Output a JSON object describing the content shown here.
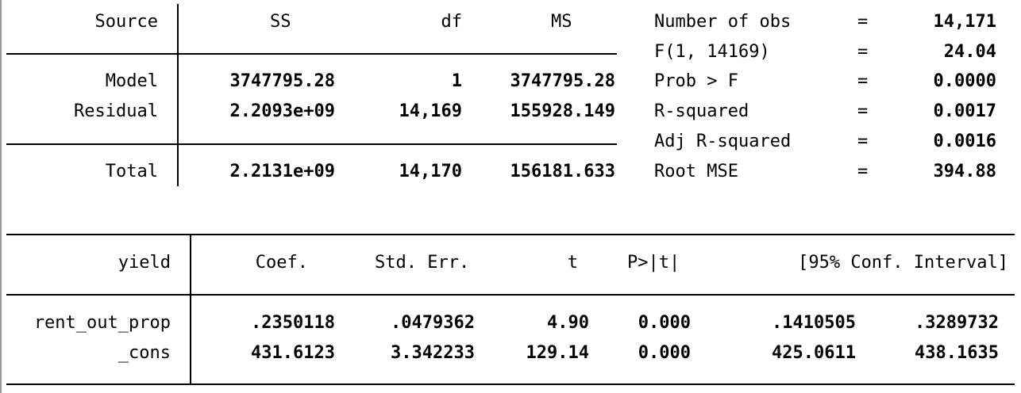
{
  "anova": {
    "headers": {
      "source": "Source",
      "ss": "SS",
      "df": "df",
      "ms": "MS"
    },
    "rows": [
      {
        "source": "Model",
        "ss": "3747795.28",
        "df": "1",
        "ms": "3747795.28"
      },
      {
        "source": "Residual",
        "ss": "2.2093e+09",
        "df": "14,169",
        "ms": "155928.149"
      }
    ],
    "total": {
      "source": "Total",
      "ss": "2.2131e+09",
      "df": "14,170",
      "ms": "156181.633"
    }
  },
  "stats": [
    {
      "label": "Number of obs",
      "eq": "=",
      "value": "14,171"
    },
    {
      "label": "F(1, 14169)",
      "eq": "=",
      "value": "24.04"
    },
    {
      "label": "Prob > F",
      "eq": "=",
      "value": "0.0000"
    },
    {
      "label": "R-squared",
      "eq": "=",
      "value": "0.0017"
    },
    {
      "label": "Adj R-squared",
      "eq": "=",
      "value": "0.0016"
    },
    {
      "label": "Root MSE",
      "eq": "=",
      "value": "394.88"
    }
  ],
  "coef": {
    "headers": {
      "var": "yield",
      "coef": "Coef.",
      "se": "Std. Err.",
      "t": "t",
      "p": "P>|t|",
      "ci": "[95% Conf. Interval]"
    },
    "rows": [
      {
        "var": "rent_out_prop",
        "coef": ".2350118",
        "se": ".0479362",
        "t": "4.90",
        "p": "0.000",
        "lo": ".1410505",
        "hi": ".3289732"
      },
      {
        "var": "_cons",
        "coef": "431.6123",
        "se": "3.342233",
        "t": "129.14",
        "p": "0.000",
        "lo": "425.0611",
        "hi": "438.1635"
      }
    ]
  }
}
